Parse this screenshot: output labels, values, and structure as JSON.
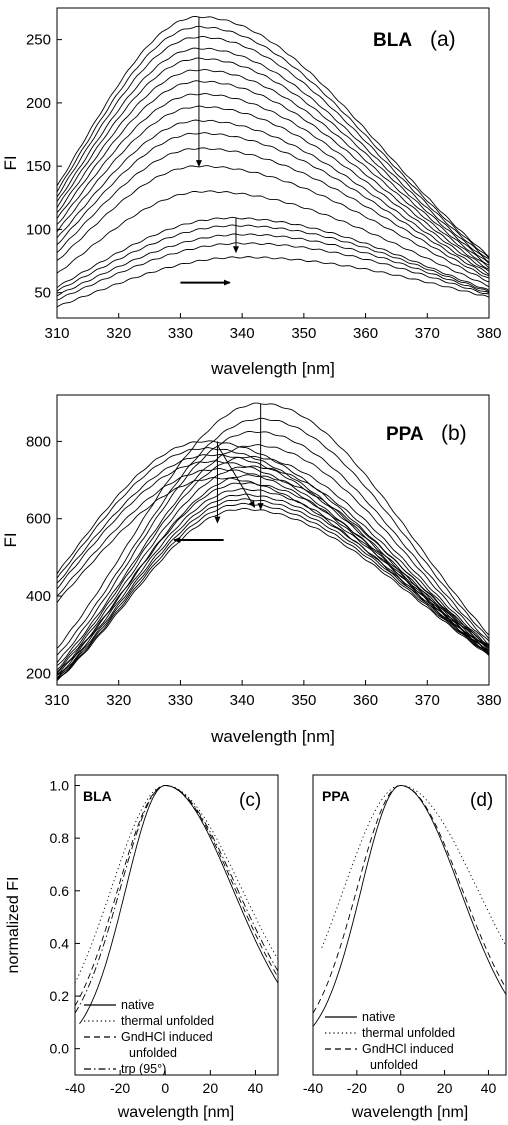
{
  "chart_data": [
    {
      "id": "a",
      "type": "line",
      "protein_label": "BLA",
      "panel_label": "(a)",
      "xlabel": "wavelength [nm]",
      "ylabel": "FI",
      "xlim": [
        310,
        380
      ],
      "ylim": [
        30,
        275
      ],
      "x_ticks": [
        310,
        320,
        330,
        340,
        350,
        360,
        370,
        380
      ],
      "y_ticks": [
        50,
        100,
        150,
        200,
        250
      ],
      "grid": false,
      "curve_shape": {
        "x_at_310_fraction": 0.5,
        "x_at_380_fraction": 0.17,
        "baseline_at_380": 40
      },
      "series_peaks": [
        {
          "peak_x": 333,
          "peak_y": 268
        },
        {
          "peak_x": 333,
          "peak_y": 260
        },
        {
          "peak_x": 333,
          "peak_y": 252
        },
        {
          "peak_x": 333,
          "peak_y": 243
        },
        {
          "peak_x": 333,
          "peak_y": 235
        },
        {
          "peak_x": 333,
          "peak_y": 226
        },
        {
          "peak_x": 333,
          "peak_y": 217
        },
        {
          "peak_x": 333,
          "peak_y": 207
        },
        {
          "peak_x": 333,
          "peak_y": 197
        },
        {
          "peak_x": 333,
          "peak_y": 186
        },
        {
          "peak_x": 333,
          "peak_y": 176
        },
        {
          "peak_x": 333,
          "peak_y": 164
        },
        {
          "peak_x": 333,
          "peak_y": 150
        },
        {
          "peak_x": 334,
          "peak_y": 130
        },
        {
          "peak_x": 338,
          "peak_y": 109
        },
        {
          "peak_x": 339,
          "peak_y": 103
        },
        {
          "peak_x": 340,
          "peak_y": 96
        },
        {
          "peak_x": 340,
          "peak_y": 89
        },
        {
          "peak_x": 340,
          "peak_y": 78
        }
      ],
      "annotations": [
        {
          "kind": "arrow",
          "from": [
            333,
            268
          ],
          "to": [
            333,
            150
          ]
        },
        {
          "kind": "arrow",
          "from": [
            339,
            109
          ],
          "to": [
            339,
            82
          ]
        },
        {
          "kind": "arrow",
          "from": [
            330,
            58
          ],
          "to": [
            338,
            58
          ]
        }
      ]
    },
    {
      "id": "b",
      "type": "line",
      "protein_label": "PPA",
      "panel_label": "(b)",
      "xlabel": "wavelength [nm]",
      "ylabel": "FI",
      "xlim": [
        310,
        380
      ],
      "ylim": [
        170,
        920
      ],
      "x_ticks": [
        310,
        320,
        330,
        340,
        350,
        360,
        370,
        380
      ],
      "y_ticks": [
        200,
        400,
        600,
        800
      ],
      "grid": false,
      "series_peaks": [
        {
          "peak_x": 343,
          "peak_y": 898,
          "y310": 265,
          "y380": 300
        },
        {
          "peak_x": 343,
          "peak_y": 858,
          "y310": 245,
          "y380": 290
        },
        {
          "peak_x": 342,
          "peak_y": 825,
          "y310": 228,
          "y380": 282
        },
        {
          "peak_x": 342,
          "peak_y": 790,
          "y310": 218,
          "y380": 275
        },
        {
          "peak_x": 341,
          "peak_y": 760,
          "y310": 210,
          "y380": 270
        },
        {
          "peak_x": 341,
          "peak_y": 735,
          "y310": 205,
          "y380": 266
        },
        {
          "peak_x": 341,
          "peak_y": 712,
          "y310": 200,
          "y380": 262
        },
        {
          "peak_x": 340,
          "peak_y": 692,
          "y310": 196,
          "y380": 258
        },
        {
          "peak_x": 340,
          "peak_y": 676,
          "y310": 192,
          "y380": 255
        },
        {
          "peak_x": 340,
          "peak_y": 662,
          "y310": 188,
          "y380": 252
        },
        {
          "peak_x": 340,
          "peak_y": 650,
          "y310": 185,
          "y380": 250
        },
        {
          "peak_x": 340,
          "peak_y": 638,
          "y310": 182,
          "y380": 248
        },
        {
          "peak_x": 340,
          "peak_y": 625,
          "y310": 180,
          "y380": 246
        },
        {
          "peak_x": 334,
          "peak_y": 800,
          "y310": 458,
          "y380": 270
        },
        {
          "peak_x": 334,
          "peak_y": 782,
          "y310": 445,
          "y380": 265
        },
        {
          "peak_x": 335,
          "peak_y": 765,
          "y310": 432,
          "y380": 262
        },
        {
          "peak_x": 335,
          "peak_y": 748,
          "y310": 420,
          "y380": 258
        },
        {
          "peak_x": 336,
          "peak_y": 728,
          "y310": 400,
          "y380": 255
        },
        {
          "peak_x": 336,
          "peak_y": 705,
          "y310": 385,
          "y380": 252
        }
      ],
      "annotations": [
        {
          "kind": "arrow",
          "from": [
            343,
            898
          ],
          "to": [
            343,
            625
          ]
        },
        {
          "kind": "arrow",
          "from": [
            336,
            800
          ],
          "to": [
            336,
            590
          ]
        },
        {
          "kind": "arrow",
          "from": [
            336,
            790
          ],
          "to": [
            342,
            630
          ]
        },
        {
          "kind": "arrow",
          "from": [
            337,
            545
          ],
          "to": [
            329,
            545
          ]
        }
      ]
    },
    {
      "id": "c",
      "type": "line",
      "protein_label": "BLA",
      "panel_label": "(c)",
      "xlabel": "wavelength [nm]",
      "ylabel": "normalized FI",
      "xlim": [
        -40,
        50
      ],
      "ylim": [
        -0.1,
        1.04
      ],
      "x_ticks": [
        -40,
        -20,
        0,
        20,
        40
      ],
      "y_ticks": [
        0.0,
        0.2,
        0.4,
        0.6,
        0.8,
        1.0
      ],
      "y_tick_labels": [
        "0.0",
        "0.2",
        "0.4",
        "0.6",
        "0.8",
        "1.0"
      ],
      "grid": false,
      "series": [
        {
          "name": "native",
          "dash": "solid",
          "sigma_left": 17.5,
          "sigma_right": 30,
          "x_start": -38
        },
        {
          "name": "thermal unfolded",
          "dash": "dotted",
          "sigma_left": 24,
          "sigma_right": 34,
          "x_start": -40
        },
        {
          "name": "GndHCl induced\nunfolded",
          "dash": "dashed",
          "sigma_left": 21,
          "sigma_right": 31,
          "x_start": -40
        },
        {
          "name": "trp (95°)",
          "dash": "dashdot",
          "sigma_left": 20,
          "sigma_right": 32,
          "x_start": -40
        }
      ]
    },
    {
      "id": "d",
      "type": "line",
      "protein_label": "PPA",
      "panel_label": "(d)",
      "xlabel": "wavelength [nm]",
      "ylabel": "",
      "xlim": [
        -40,
        48
      ],
      "ylim": [
        -0.1,
        1.04
      ],
      "x_ticks": [
        -40,
        -20,
        0,
        20,
        40
      ],
      "grid": false,
      "series": [
        {
          "name": "native",
          "dash": "solid",
          "sigma_left": 18,
          "sigma_right": 27,
          "x_start": -40
        },
        {
          "name": "thermal unfolded",
          "dash": "dotted",
          "sigma_left": 26,
          "sigma_right": 35,
          "x_start": -36
        },
        {
          "name": "GndHCl induced\nunfolded",
          "dash": "dashed",
          "sigma_left": 20,
          "sigma_right": 28,
          "x_start": -40
        }
      ]
    }
  ]
}
